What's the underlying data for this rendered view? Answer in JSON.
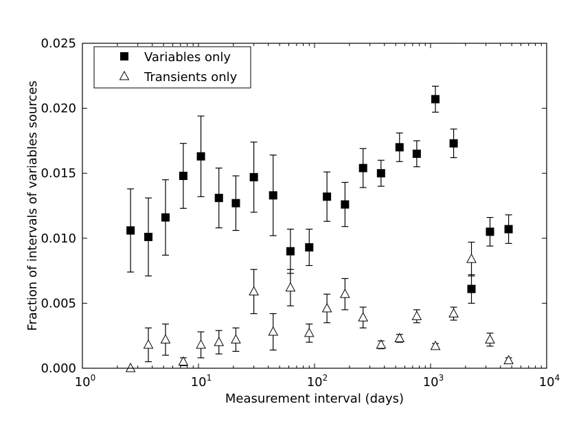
{
  "chart_data": {
    "type": "scatter",
    "title": "",
    "xlabel": "Measurement interval (days)",
    "ylabel": "Fraction of intervals of variables sources",
    "xscale": "log",
    "xlim": [
      1,
      10000
    ],
    "ylim": [
      0,
      0.025
    ],
    "grid": false,
    "legend_position": "top-left",
    "x_ticks": [
      {
        "value": 1,
        "base": "10",
        "exp": "0"
      },
      {
        "value": 10,
        "base": "10",
        "exp": "1"
      },
      {
        "value": 100,
        "base": "10",
        "exp": "2"
      },
      {
        "value": 1000,
        "base": "10",
        "exp": "3"
      },
      {
        "value": 10000,
        "base": "10",
        "exp": "4"
      }
    ],
    "y_ticks": [
      {
        "value": 0,
        "label": "0.000"
      },
      {
        "value": 0.005,
        "label": "0.005"
      },
      {
        "value": 0.01,
        "label": "0.010"
      },
      {
        "value": 0.015,
        "label": "0.015"
      },
      {
        "value": 0.02,
        "label": "0.020"
      },
      {
        "value": 0.025,
        "label": "0.025"
      }
    ],
    "series": [
      {
        "name": "Variables only",
        "marker": "filled-square",
        "color": "#000000",
        "x": [
          2.6,
          3.7,
          5.2,
          7.4,
          10.5,
          15,
          21,
          30,
          44,
          62,
          90,
          128,
          183,
          262,
          374,
          540,
          760,
          1100,
          1580,
          2250,
          3250,
          4700
        ],
        "y": [
          0.0106,
          0.0101,
          0.0116,
          0.0148,
          0.0163,
          0.0131,
          0.0127,
          0.0147,
          0.0133,
          0.009,
          0.0093,
          0.0132,
          0.0126,
          0.0154,
          0.015,
          0.017,
          0.0165,
          0.0207,
          0.0173,
          0.0061,
          0.0105,
          0.0107
        ],
        "err": [
          0.0032,
          0.003,
          0.0029,
          0.0025,
          0.0031,
          0.0023,
          0.0021,
          0.0027,
          0.0031,
          0.0017,
          0.0014,
          0.0019,
          0.0017,
          0.0015,
          0.001,
          0.0011,
          0.001,
          0.001,
          0.0011,
          0.0011,
          0.0011,
          0.0011
        ]
      },
      {
        "name": "Transients only",
        "marker": "open-triangle",
        "color": "#000000",
        "x": [
          2.6,
          3.7,
          5.2,
          7.4,
          10.5,
          15,
          21,
          30,
          44,
          62,
          90,
          128,
          183,
          262,
          374,
          540,
          760,
          1100,
          1580,
          2250,
          3250,
          4700
        ],
        "y": [
          0.0,
          0.0018,
          0.0022,
          0.0005,
          0.0018,
          0.002,
          0.0022,
          0.0059,
          0.0028,
          0.0062,
          0.0027,
          0.0046,
          0.0057,
          0.0039,
          0.0018,
          0.0023,
          0.004,
          0.0017,
          0.0042,
          0.0084,
          0.0022,
          0.0006
        ],
        "err": [
          0.0,
          0.0013,
          0.0012,
          0.0003,
          0.001,
          0.0009,
          0.0009,
          0.0017,
          0.0014,
          0.0014,
          0.0007,
          0.0011,
          0.0012,
          0.0008,
          0.0003,
          0.0003,
          0.0005,
          0.0002,
          0.0005,
          0.0013,
          0.0005,
          0.0002
        ]
      }
    ]
  }
}
